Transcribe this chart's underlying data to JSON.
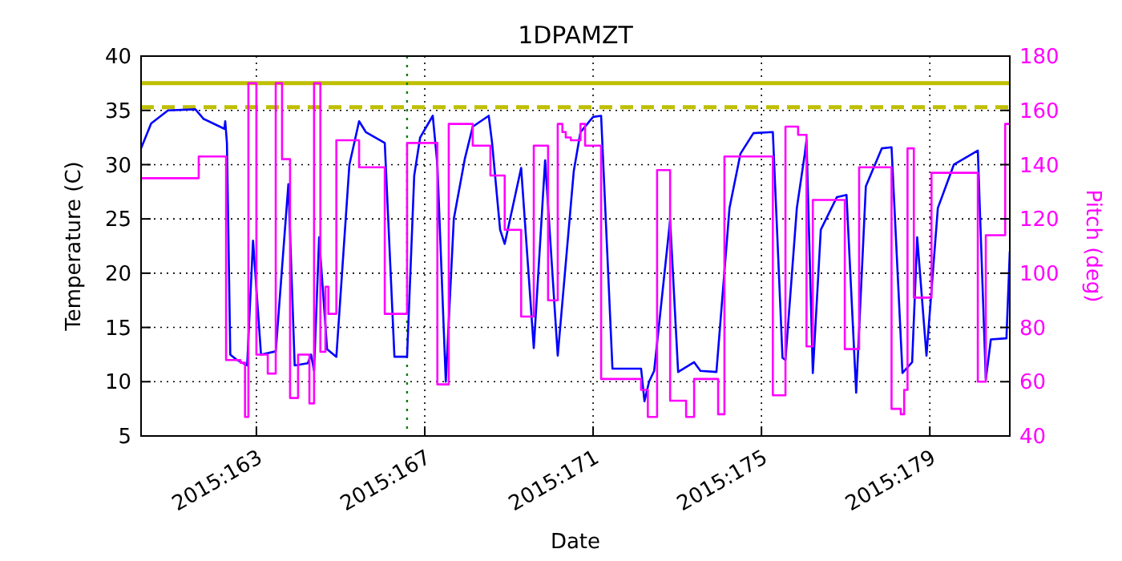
{
  "chart_data": {
    "type": "line",
    "title": "1DPAMZT",
    "xlabel": "Date",
    "ylabel": "Temperature (C)",
    "y2label": "Pitch (deg)",
    "xlim": [
      "2015-06-09T06:14",
      "2015-06-29T21:36"
    ],
    "xticks": [
      {
        "value": "2015-06-12",
        "label": "2015:163"
      },
      {
        "value": "2015-06-16",
        "label": "2015:167"
      },
      {
        "value": "2015-06-20",
        "label": "2015:171"
      },
      {
        "value": "2015-06-24",
        "label": "2015:175"
      },
      {
        "value": "2015-06-28",
        "label": "2015:179"
      }
    ],
    "ylim": [
      5,
      40
    ],
    "yticks": [
      5,
      10,
      15,
      20,
      25,
      30,
      35,
      40
    ],
    "y2lim": [
      40,
      180
    ],
    "y2ticks": [
      40,
      60,
      80,
      100,
      120,
      140,
      160,
      180
    ],
    "grid": true,
    "series": [
      {
        "color": "#0000ff",
        "x": [
          "2015-06-09T06:14",
          "2015-06-09T12:00",
          "2015-06-09T21:36",
          "2015-06-10T13:12",
          "2015-06-10T18:00",
          "2015-06-11T05:46",
          "2015-06-11T06:14",
          "2015-06-11T07:12",
          "2015-06-11T09:07",
          "2015-06-11T12:58",
          "2015-06-11T18:43",
          "2015-06-11T22:05",
          "2015-06-12T02:38",
          "2015-06-12T11:02",
          "2015-06-12T18:14",
          "2015-06-12T21:50",
          "2015-06-13T05:17",
          "2015-06-13T07:12",
          "2015-06-13T08:53",
          "2015-06-13T11:46",
          "2015-06-13T16:19",
          "2015-06-13T21:36",
          "2015-06-14T05:02",
          "2015-06-14T10:34",
          "2015-06-14T14:24",
          "2015-06-15T01:12",
          "2015-06-15T06:43",
          "2015-06-15T13:55",
          "2015-06-15T18:00",
          "2015-06-15T21:22",
          "2015-06-16T04:34",
          "2015-06-16T07:12",
          "2015-06-16T12:00",
          "2015-06-16T16:34",
          "2015-06-16T22:48",
          "2015-06-17T03:22",
          "2015-06-17T12:29",
          "2015-06-17T14:24",
          "2015-06-17T18:58",
          "2015-06-17T21:36",
          "2015-06-18T06:58",
          "2015-06-18T14:10",
          "2015-06-18T20:38",
          "2015-06-19T03:50",
          "2015-06-19T12:58",
          "2015-06-19T16:48",
          "2015-06-20T00:00",
          "2015-06-20T04:34",
          "2015-06-20T11:02",
          "2015-06-21T03:22",
          "2015-06-21T05:17",
          "2015-06-21T07:55",
          "2015-06-21T10:48",
          "2015-06-21T19:55",
          "2015-06-22T00:29",
          "2015-06-22T09:36",
          "2015-06-22T13:12",
          "2015-06-22T22:19",
          "2015-06-23T05:46",
          "2015-06-23T12:00",
          "2015-06-23T19:26",
          "2015-06-24T06:29",
          "2015-06-24T12:00",
          "2015-06-24T13:41",
          "2015-06-24T20:10",
          "2015-06-25T00:43",
          "2015-06-25T01:41",
          "2015-06-25T05:17",
          "2015-06-25T09:50",
          "2015-06-25T18:58",
          "2015-06-26T00:29",
          "2015-06-26T06:00",
          "2015-06-26T11:31",
          "2015-06-26T20:38",
          "2015-06-27T02:10",
          "2015-06-27T08:24",
          "2015-06-27T13:55",
          "2015-06-27T16:48",
          "2015-06-27T22:05",
          "2015-06-28T04:34",
          "2015-06-28T13:41",
          "2015-06-29T03:22",
          "2015-06-29T07:55",
          "2015-06-29T10:48",
          "2015-06-29T19:41",
          "2015-06-29T21:36"
        ],
        "values": [
          31.5,
          33.8,
          35,
          35.1,
          34.2,
          33.3,
          34,
          32,
          12.5,
          12,
          11.5,
          23,
          12.5,
          12.8,
          28.2,
          11.5,
          11.7,
          12.5,
          11,
          23.3,
          13,
          12.3,
          30,
          34,
          33,
          32,
          12.3,
          12.3,
          29,
          32.5,
          34.5,
          30,
          10,
          25,
          30.5,
          33.5,
          34.5,
          32,
          24,
          22.7,
          29.7,
          13.1,
          30.4,
          12.4,
          29.4,
          33,
          34.4,
          34.5,
          11.2,
          11.2,
          8.2,
          10,
          11,
          24.9,
          10.9,
          11.8,
          11,
          10.9,
          26,
          31,
          32.9,
          33,
          12.2,
          12,
          26,
          31,
          32.3,
          10.8,
          24,
          27,
          27.2,
          9,
          28,
          31.5,
          31.6,
          10.8,
          11.8,
          23.3,
          12.4,
          26,
          30,
          31.3,
          10.2,
          13.9,
          14,
          22
        ]
      },
      {
        "type": "step",
        "axis": "y2",
        "color": "#ff00ff",
        "x": [
          "2015-06-09T06:14",
          "2015-06-10T15:07",
          "2015-06-11T06:43",
          "2015-06-11T14:53",
          "2015-06-11T17:31",
          "2015-06-11T19:26",
          "2015-06-12T00:00",
          "2015-06-12T06:29",
          "2015-06-12T11:02",
          "2015-06-12T14:38",
          "2015-06-12T19:12",
          "2015-06-12T23:46",
          "2015-06-13T06:14",
          "2015-06-13T08:53",
          "2015-06-13T12:29",
          "2015-06-13T15:22",
          "2015-06-13T17:02",
          "2015-06-13T21:36",
          "2015-06-14T10:34",
          "2015-06-15T01:12",
          "2015-06-15T13:55",
          "2015-06-16T07:12",
          "2015-06-16T13:41",
          "2015-06-17T03:22",
          "2015-06-17T13:26",
          "2015-06-17T21:36",
          "2015-06-18T06:58",
          "2015-06-18T14:10",
          "2015-06-18T22:19",
          "2015-06-19T03:50",
          "2015-06-19T06:29",
          "2015-06-19T08:24",
          "2015-06-19T11:17",
          "2015-06-19T16:48",
          "2015-06-19T19:26",
          "2015-06-20T04:34",
          "2015-06-21T03:22",
          "2015-06-21T07:12",
          "2015-06-21T12:29",
          "2015-06-21T19:55",
          "2015-06-22T05:02",
          "2015-06-22T09:36",
          "2015-06-22T23:17",
          "2015-06-23T02:53",
          "2015-06-24T06:29",
          "2015-06-24T13:41",
          "2015-06-24T20:53",
          "2015-06-25T01:41",
          "2015-06-25T05:17",
          "2015-06-25T23:31",
          "2015-06-26T07:41",
          "2015-06-27T02:10",
          "2015-06-27T07:26",
          "2015-06-27T09:22",
          "2015-06-27T11:17",
          "2015-06-27T14:53",
          "2015-06-28T00:58",
          "2015-06-29T03:22",
          "2015-06-29T07:55",
          "2015-06-29T18:58",
          "2015-06-29T21:36"
        ],
        "values": [
          135,
          143,
          68,
          67,
          47,
          170,
          70,
          63,
          170,
          142,
          54,
          70,
          52,
          170,
          71,
          95,
          85,
          149,
          139,
          85,
          148,
          59,
          155,
          147,
          136,
          116,
          84,
          147,
          90,
          155,
          152,
          150,
          149,
          155,
          147,
          61,
          57,
          47,
          138,
          53,
          47,
          61,
          48,
          143,
          55,
          154,
          151,
          73,
          127,
          72,
          139,
          50,
          48,
          57,
          146,
          91,
          137,
          60,
          114,
          155,
          155
        ]
      }
    ],
    "ref_lines": [
      {
        "axis": "y",
        "value": 37.5,
        "color": "#bfbf00",
        "line_style": "solid"
      },
      {
        "axis": "y",
        "value": 35.3,
        "color": "#bfbf00",
        "line_style": "dashed"
      },
      {
        "axis": "x",
        "value": "2015-06-15T13:55",
        "color": "#008000",
        "line_style": "dotted"
      }
    ]
  }
}
